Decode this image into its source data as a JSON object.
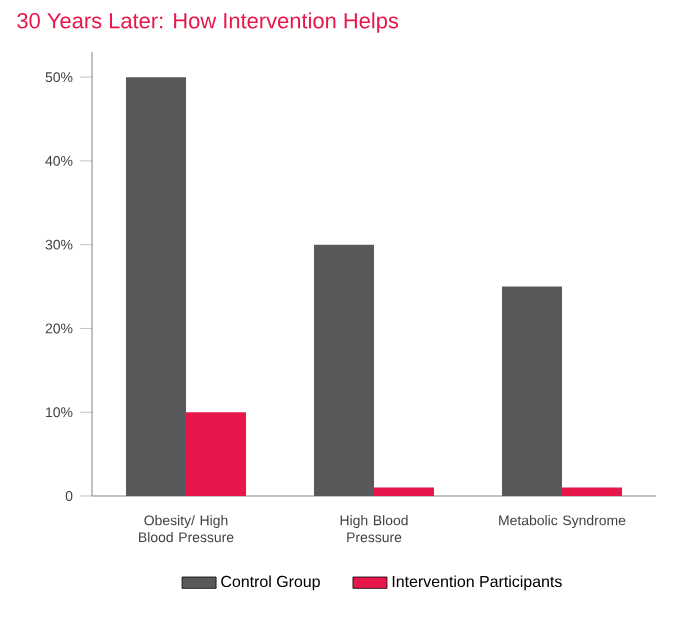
{
  "chart_data": {
    "type": "bar",
    "title": "30 Years Later: How Intervention Helps",
    "categories": [
      "Obesity/ High Blood Pressure",
      "High Blood Pressure",
      "Metabolic Syndrome"
    ],
    "series": [
      {
        "name": "Control Group",
        "color": "#58595b",
        "values": [
          50,
          30,
          25
        ]
      },
      {
        "name": "Intervention Participants",
        "color": "#e8174b",
        "values": [
          10,
          1,
          1
        ]
      }
    ],
    "ylim": [
      0,
      53
    ],
    "yticks": [
      0,
      {
        "value": 10,
        "label": "10%"
      },
      {
        "value": 20,
        "label": "20%"
      },
      {
        "value": 30,
        "label": "30%"
      },
      {
        "value": 40,
        "label": "40%"
      },
      {
        "value": 50,
        "label": "50%"
      }
    ],
    "grid": false,
    "legend": "bottom"
  }
}
